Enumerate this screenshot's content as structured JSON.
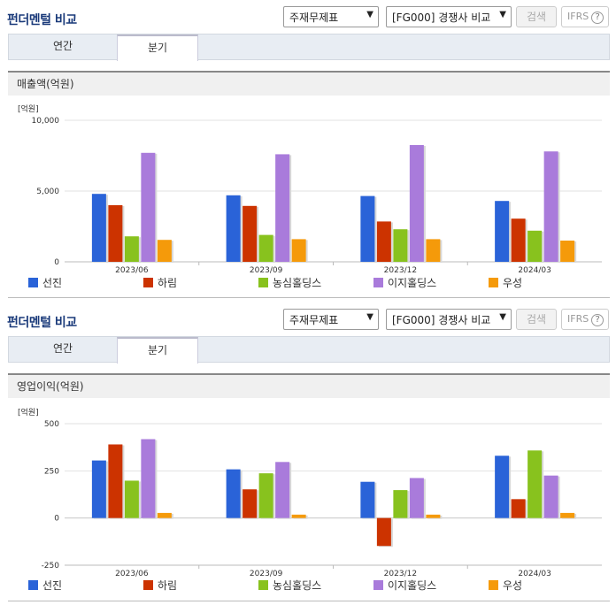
{
  "sections": [
    {
      "title": "펀더멘털 비교",
      "select1": "주재무제표",
      "select2": "[FG000] 경쟁사 비교",
      "search_label": "검색",
      "ifrs_label": "IFRS",
      "ifrs_help": "?",
      "tabs": [
        "연간",
        "분기"
      ],
      "active_tab": "분기",
      "metric_label": "매출액(억원)"
    },
    {
      "title": "펀더멘털 비교",
      "select1": "주재무제표",
      "select2": "[FG000] 경쟁사 비교",
      "search_label": "검색",
      "ifrs_label": "IFRS",
      "ifrs_help": "?",
      "tabs": [
        "연간",
        "분기"
      ],
      "active_tab": "분기",
      "metric_label": "영업이익(억원)"
    }
  ],
  "chart_data": [
    {
      "type": "bar",
      "unit_label": "[억원]",
      "categories": [
        "2023/06",
        "2023/09",
        "2023/12",
        "2024/03"
      ],
      "ylim": [
        0,
        10000
      ],
      "yticks": [
        0,
        5000,
        10000
      ],
      "ytick_labels": [
        "0",
        "5,000",
        "10,000"
      ],
      "grid": true,
      "legend_position": "bottom",
      "series": [
        {
          "name": "선진",
          "color": "#2a63d8",
          "values": [
            4800,
            4700,
            4650,
            4300
          ]
        },
        {
          "name": "하림",
          "color": "#cc3300",
          "values": [
            4000,
            3950,
            2850,
            3050
          ]
        },
        {
          "name": "농심홀딩스",
          "color": "#88c21e",
          "values": [
            1800,
            1900,
            2300,
            2200
          ]
        },
        {
          "name": "이지홀딩스",
          "color": "#a97bdb",
          "values": [
            7700,
            7600,
            8250,
            7800
          ]
        },
        {
          "name": "우성",
          "color": "#f59a0a",
          "values": [
            1550,
            1600,
            1600,
            1500
          ]
        }
      ]
    },
    {
      "type": "bar",
      "unit_label": "[억원]",
      "categories": [
        "2023/06",
        "2023/09",
        "2023/12",
        "2024/03"
      ],
      "ylim": [
        -250,
        500
      ],
      "yticks": [
        -250,
        0,
        250,
        500
      ],
      "ytick_labels": [
        "-250",
        "0",
        "250",
        "500"
      ],
      "grid": true,
      "legend_position": "bottom",
      "series": [
        {
          "name": "선진",
          "color": "#2a63d8",
          "values": [
            305,
            258,
            192,
            330
          ]
        },
        {
          "name": "하림",
          "color": "#cc3300",
          "values": [
            390,
            152,
            -148,
            100
          ]
        },
        {
          "name": "농심홀딩스",
          "color": "#88c21e",
          "values": [
            198,
            237,
            148,
            358
          ]
        },
        {
          "name": "이지홀딩스",
          "color": "#a97bdb",
          "values": [
            418,
            297,
            212,
            225
          ]
        },
        {
          "name": "우성",
          "color": "#f59a0a",
          "values": [
            27,
            18,
            18,
            27
          ]
        }
      ]
    }
  ]
}
